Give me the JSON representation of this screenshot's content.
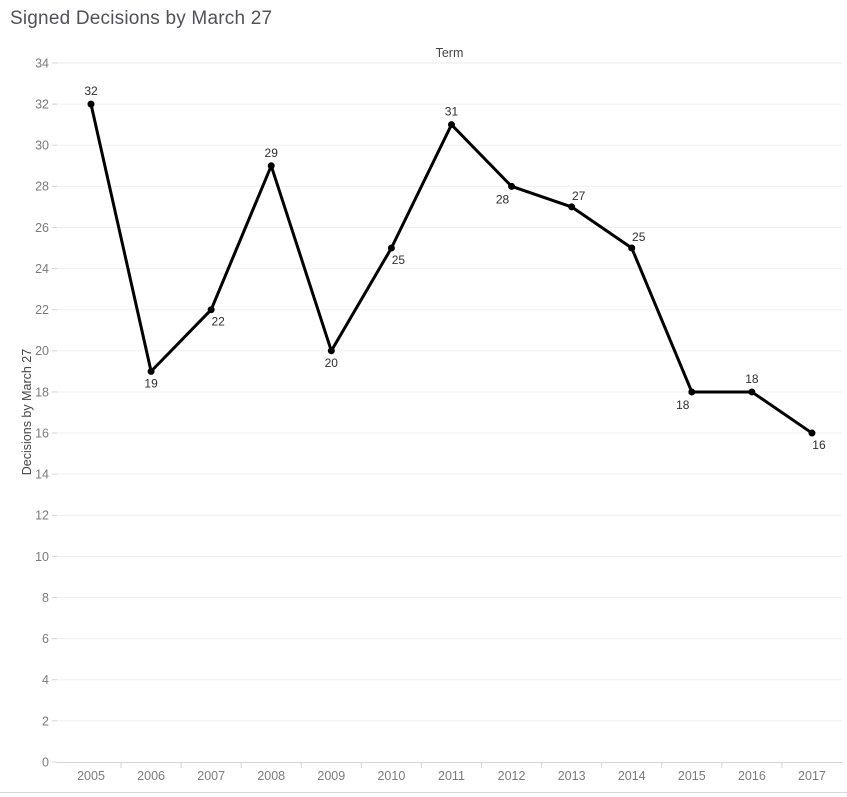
{
  "title": "Signed Decisions by March 27",
  "chart_data": {
    "type": "line",
    "title": "Signed Decisions by March 27",
    "x_axis_title": "Term",
    "y_axis_title": "Decisions by March 27",
    "categories": [
      "2005",
      "2006",
      "2007",
      "2008",
      "2009",
      "2010",
      "2011",
      "2012",
      "2013",
      "2014",
      "2015",
      "2016",
      "2017"
    ],
    "series": [
      {
        "name": "Decisions by March 27",
        "values": [
          32,
          19,
          22,
          29,
          20,
          25,
          31,
          28,
          27,
          25,
          18,
          18,
          16
        ]
      }
    ],
    "point_labels": [
      "32",
      "19",
      "22",
      "29",
      "20",
      "25",
      "31",
      "28",
      "27",
      "25",
      "18",
      "18",
      "16"
    ],
    "label_placement": [
      "above",
      "below",
      "below-right",
      "above",
      "below",
      "below-right",
      "above",
      "below-left",
      "above-right",
      "above-right",
      "below-left",
      "above",
      "below-right"
    ],
    "y_ticks": [
      0,
      2,
      4,
      6,
      8,
      10,
      12,
      14,
      16,
      18,
      20,
      22,
      24,
      26,
      28,
      30,
      32,
      34
    ],
    "ylim": [
      0,
      34
    ],
    "grid": "horizontal gridlines every 2 units",
    "legend": "none",
    "colors": {
      "line": "#000000",
      "marker": "#000000",
      "data_label": "#2e2e2e",
      "tick_label": "#7b7b7b",
      "axis_title": "#454545",
      "chart_title": "#50515a",
      "gridline": "#f0f0f0",
      "pane_top_border": "#e8e8e8",
      "axis_line": "#d4d4d4",
      "tick_mark": "#d4d4d4",
      "bottom_divider": "#dadada",
      "background": "#ffffff"
    }
  }
}
